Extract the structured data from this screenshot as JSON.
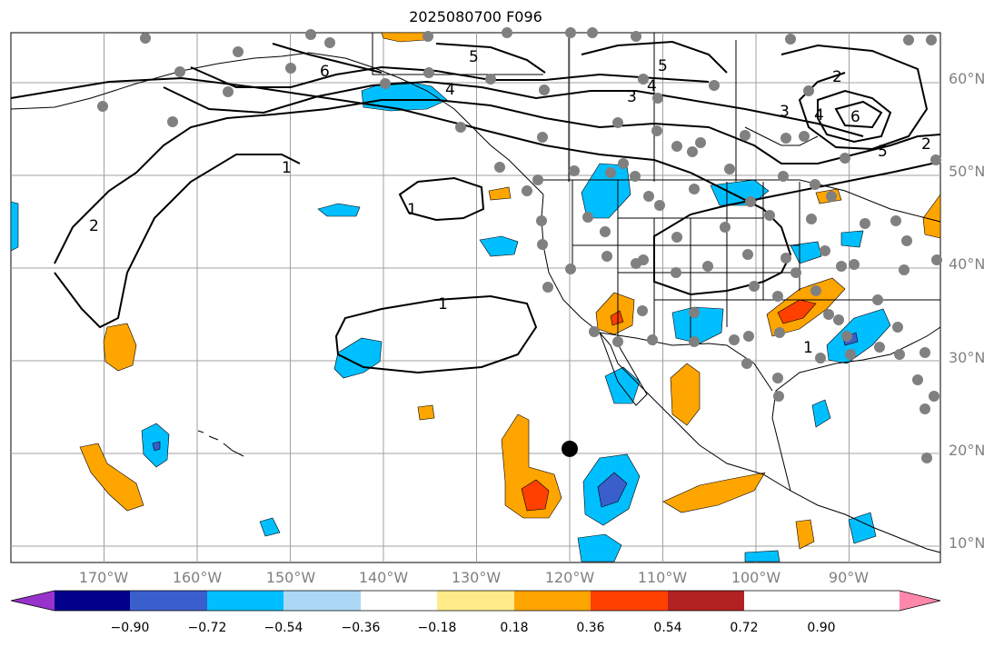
{
  "title": "2025080700 F096",
  "latitude_labels": [
    {
      "label": "60°N"
    },
    {
      "label": "50°N"
    },
    {
      "label": "40°N"
    },
    {
      "label": "30°N"
    },
    {
      "label": "20°N"
    },
    {
      "label": "10°N"
    }
  ],
  "longitude_labels": [
    {
      "label": "170°W"
    },
    {
      "label": "160°W"
    },
    {
      "label": "150°W"
    },
    {
      "label": "140°W"
    },
    {
      "label": "130°W"
    },
    {
      "label": "120°W"
    },
    {
      "label": "110°W"
    },
    {
      "label": "100°W"
    },
    {
      "label": "90°W"
    }
  ],
  "colorbar": {
    "colors": [
      "#9932cc",
      "#00008b",
      "#3a5fcd",
      "#00bfff",
      "#add8f5",
      "#ffffff",
      "#ffeb8a",
      "#ffa500",
      "#ff4000",
      "#b22222",
      "#ff88aa"
    ],
    "ticks": [
      "−0.90",
      "−0.72",
      "−0.54",
      "−0.36",
      "−0.18",
      "0.18",
      "0.36",
      "0.54",
      "0.72",
      "0.90"
    ]
  },
  "contour_labels": [
    "5",
    "5",
    "4",
    "4",
    "3",
    "6",
    "2",
    "3",
    "4",
    "6",
    "5",
    "2",
    "1",
    "2",
    "1",
    "1",
    "1"
  ],
  "marker": {
    "lon": -120,
    "lat": 20.5
  },
  "colors": {
    "grid": "#a0a0a0",
    "contour": "#000000",
    "station": "#808080",
    "axis_label": "#808080"
  }
}
